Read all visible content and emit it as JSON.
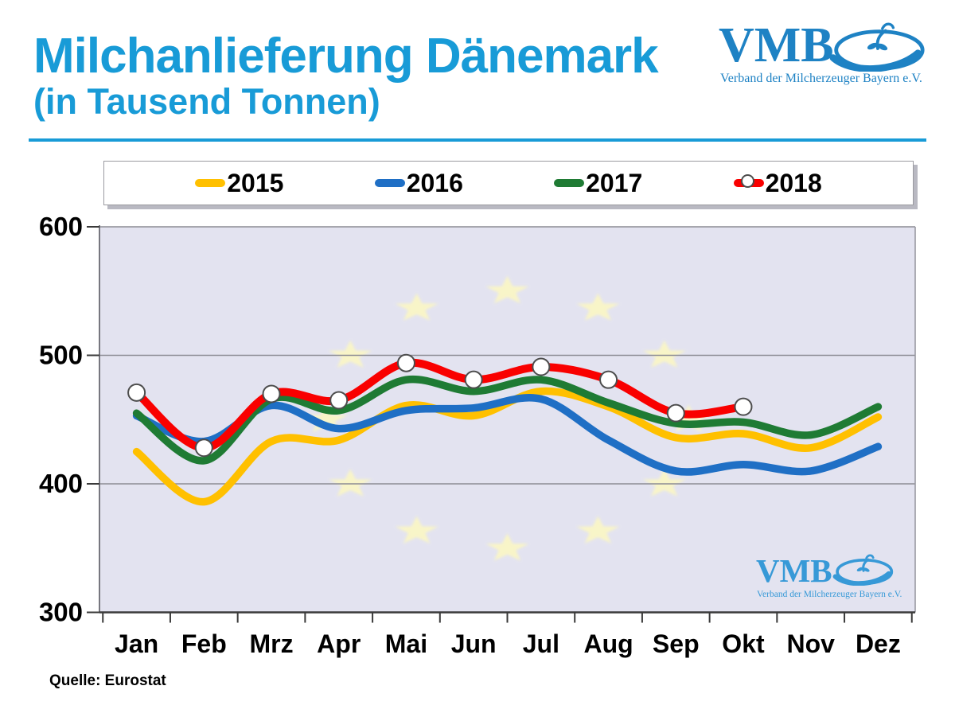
{
  "header": {
    "title": "Milchanlieferung Dänemark",
    "subtitle": "(in Tausend Tonnen)",
    "accent_color": "#189BD7"
  },
  "logo": {
    "name": "VMB",
    "subtitle": "Verband der Milcherzeuger Bayern e.V.",
    "color": "#1E82C4",
    "watermark_color": "#2E96D6"
  },
  "source": "Quelle: Eurostat",
  "chart_data": {
    "type": "line",
    "title": "Milchanlieferung Dänemark (in Tausend Tonnen)",
    "categories": [
      "Jan",
      "Feb",
      "Mrz",
      "Apr",
      "Mai",
      "Jun",
      "Jul",
      "Aug",
      "Sep",
      "Okt",
      "Nov",
      "Dez"
    ],
    "series": [
      {
        "name": "2015",
        "color": "#FFC000",
        "marker": false,
        "values": [
          425,
          386,
          433,
          434,
          461,
          453,
          472,
          460,
          436,
          439,
          428,
          452
        ]
      },
      {
        "name": "2016",
        "color": "#1F6FC5",
        "marker": false,
        "values": [
          453,
          433,
          461,
          443,
          457,
          459,
          466,
          434,
          410,
          415,
          410,
          429
        ]
      },
      {
        "name": "2017",
        "color": "#1F7B34",
        "marker": false,
        "values": [
          455,
          418,
          466,
          457,
          481,
          472,
          481,
          463,
          447,
          448,
          438,
          460
        ]
      },
      {
        "name": "2018",
        "color": "#F90000",
        "marker": true,
        "values": [
          471,
          428,
          470,
          465,
          494,
          481,
          491,
          481,
          455,
          460
        ]
      }
    ],
    "ylim": [
      300,
      600
    ],
    "y_ticks": [
      600,
      500,
      400,
      300
    ],
    "grid": "horizontal",
    "legend_position": "top",
    "plot_bg": "#E3E3F0",
    "watermark": "EU stars circle + VMB logo",
    "star_color": "#FAF6C6"
  }
}
